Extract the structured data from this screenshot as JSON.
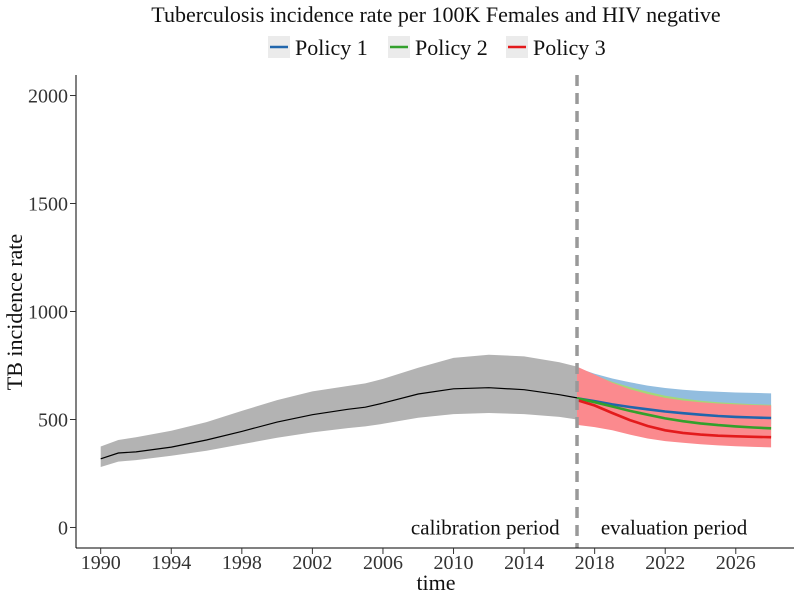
{
  "chart_data": {
    "type": "line",
    "title": "Tuberculosis incidence rate per 100K Females and HIV negative",
    "xlabel": "time",
    "ylabel": "TB incidence rate",
    "xlim": [
      1988.6,
      2029.3
    ],
    "ylim": [
      -95,
      2095
    ],
    "x_ticks": [
      1990,
      1994,
      1998,
      2002,
      2006,
      2010,
      2014,
      2018,
      2022,
      2026
    ],
    "y_ticks": [
      0,
      500,
      1000,
      1500,
      2000
    ],
    "grid": false,
    "legend_position": "top",
    "divider_x": 2017,
    "annotations": [
      {
        "text": "calibration period",
        "x": 2011.8,
        "y": 0
      },
      {
        "text": "evaluation period",
        "x": 2022.5,
        "y": 0
      }
    ],
    "calibration": {
      "color_line": "#000000",
      "color_band": "#b3b3b3",
      "x": [
        1990,
        1991,
        1992,
        1994,
        1996,
        1998,
        2000,
        2002,
        2004,
        2005,
        2006,
        2008,
        2010,
        2012,
        2014,
        2016,
        2017
      ],
      "y": [
        318,
        345,
        350,
        372,
        405,
        445,
        488,
        522,
        547,
        557,
        576,
        618,
        642,
        647,
        638,
        615,
        600
      ],
      "lower": [
        280,
        305,
        312,
        332,
        355,
        385,
        415,
        440,
        460,
        468,
        480,
        508,
        525,
        530,
        525,
        512,
        500
      ],
      "upper": [
        375,
        405,
        418,
        448,
        488,
        540,
        590,
        630,
        655,
        667,
        688,
        740,
        785,
        800,
        792,
        765,
        745
      ]
    },
    "x": [
      2017,
      2018,
      2019,
      2020,
      2021,
      2022,
      2023,
      2024,
      2025,
      2026,
      2027,
      2028
    ],
    "series": [
      {
        "name": "Policy 1",
        "color": "#2166ac",
        "band_color": "#92bddf",
        "values": [
          598,
          585,
          570,
          558,
          547,
          537,
          529,
          522,
          516,
          512,
          509,
          507
        ],
        "lower": [
          490,
          495,
          495,
          494,
          492,
          490,
          488,
          485,
          483,
          481,
          480,
          478
        ],
        "upper": [
          740,
          712,
          690,
          672,
          657,
          646,
          638,
          632,
          628,
          625,
          623,
          621
        ]
      },
      {
        "name": "Policy 2",
        "color": "#33a02c",
        "band_color": "#a3d879",
        "values": [
          598,
          580,
          560,
          540,
          522,
          505,
          492,
          482,
          474,
          468,
          463,
          459
        ],
        "lower": [
          485,
          478,
          470,
          462,
          452,
          443,
          436,
          430,
          426,
          423,
          420,
          418
        ],
        "upper": [
          740,
          705,
          675,
          650,
          628,
          610,
          597,
          587,
          580,
          575,
          571,
          568
        ]
      },
      {
        "name": "Policy 3",
        "color": "#e31a1c",
        "band_color": "#fb8a8e",
        "values": [
          590,
          565,
          530,
          497,
          470,
          450,
          438,
          430,
          425,
          422,
          420,
          418
        ],
        "lower": [
          475,
          465,
          450,
          430,
          412,
          400,
          392,
          385,
          380,
          376,
          373,
          371
        ],
        "upper": [
          745,
          708,
          670,
          640,
          618,
          600,
          588,
          580,
          574,
          570,
          567,
          565
        ]
      }
    ]
  }
}
